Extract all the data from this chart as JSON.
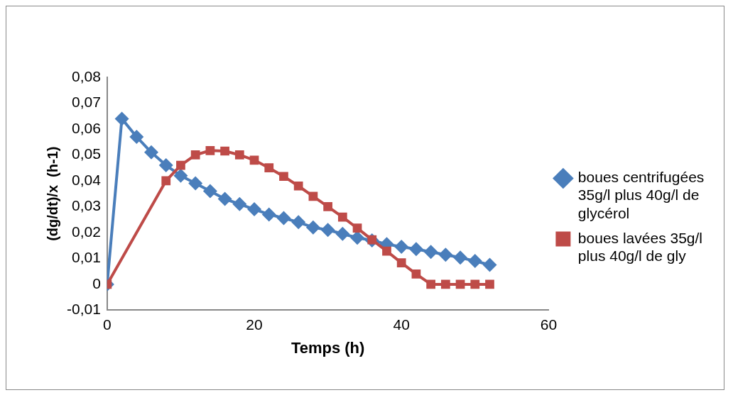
{
  "chart_data": {
    "type": "line",
    "xlabel": "Temps (h)",
    "ylabel": "(dg/dt)/x  (h-1)",
    "xlim": [
      0,
      60
    ],
    "xticks": [
      0,
      20,
      40,
      60
    ],
    "ylim": [
      -0.01,
      0.08
    ],
    "yticks": [
      {
        "value": -0.01,
        "label": "-0,01"
      },
      {
        "value": 0,
        "label": "0"
      },
      {
        "value": 0.01,
        "label": "0,01"
      },
      {
        "value": 0.02,
        "label": "0,02"
      },
      {
        "value": 0.03,
        "label": "0,03"
      },
      {
        "value": 0.04,
        "label": "0,04"
      },
      {
        "value": 0.05,
        "label": "0,05"
      },
      {
        "value": 0.06,
        "label": "0,06"
      },
      {
        "value": 0.07,
        "label": "0,07"
      },
      {
        "value": 0.08,
        "label": "0,08"
      }
    ],
    "grid": false,
    "legend": "right",
    "line_style": "solid",
    "series": [
      {
        "name": "boues centrifugées 35g/l plus 40g/l de glycérol",
        "color": "#4a7ebb",
        "marker": "diamond",
        "x": [
          0,
          2,
          4,
          6,
          8,
          10,
          12,
          14,
          16,
          18,
          20,
          22,
          24,
          26,
          28,
          30,
          32,
          34,
          36,
          38,
          40,
          42,
          44,
          46,
          48,
          50,
          52
        ],
        "values": [
          0,
          0.064,
          0.057,
          0.051,
          0.046,
          0.042,
          0.039,
          0.036,
          0.033,
          0.031,
          0.029,
          0.027,
          0.0256,
          0.024,
          0.022,
          0.021,
          0.0195,
          0.018,
          0.017,
          0.0155,
          0.0145,
          0.0136,
          0.0125,
          0.0114,
          0.0103,
          0.009,
          0.0075
        ]
      },
      {
        "name": "boues lavées 35g/l plus 40g/l de gly",
        "color": "#be4b48",
        "marker": "square",
        "x": [
          0,
          8,
          10,
          12,
          14,
          16,
          18,
          20,
          22,
          24,
          26,
          28,
          30,
          32,
          34,
          36,
          38,
          40,
          42,
          44,
          46,
          48,
          50,
          52
        ],
        "values": [
          0,
          0.04,
          0.046,
          0.05,
          0.0517,
          0.0515,
          0.05,
          0.048,
          0.045,
          0.0417,
          0.038,
          0.034,
          0.03,
          0.026,
          0.0217,
          0.0172,
          0.0128,
          0.0083,
          0.004,
          0,
          0,
          0,
          0,
          0
        ]
      }
    ]
  }
}
